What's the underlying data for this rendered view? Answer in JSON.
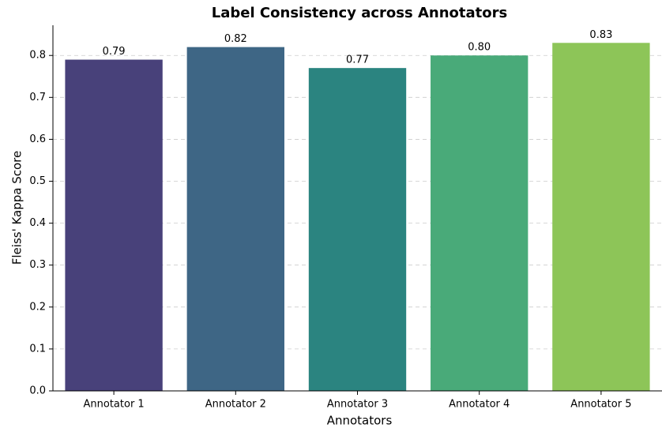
{
  "chart_data": {
    "type": "bar",
    "title": "Label Consistency across Annotators",
    "xlabel": "Annotators",
    "ylabel": "Fleiss' Kappa Score",
    "categories": [
      "Annotator 1",
      "Annotator 2",
      "Annotator 3",
      "Annotator 4",
      "Annotator 5"
    ],
    "values": [
      0.79,
      0.82,
      0.77,
      0.8,
      0.83
    ],
    "value_labels": [
      "0.79",
      "0.82",
      "0.77",
      "0.80",
      "0.83"
    ],
    "colors": [
      "#48417a",
      "#3e6685",
      "#2b8480",
      "#49aa79",
      "#8dc558"
    ],
    "ylim": [
      0,
      0.872
    ],
    "yticks": [
      {
        "value": 0,
        "label": "0.0"
      },
      0.1,
      0.2,
      0.3,
      0.4,
      0.5,
      0.6,
      0.7,
      0.8
    ],
    "grid": true
  }
}
